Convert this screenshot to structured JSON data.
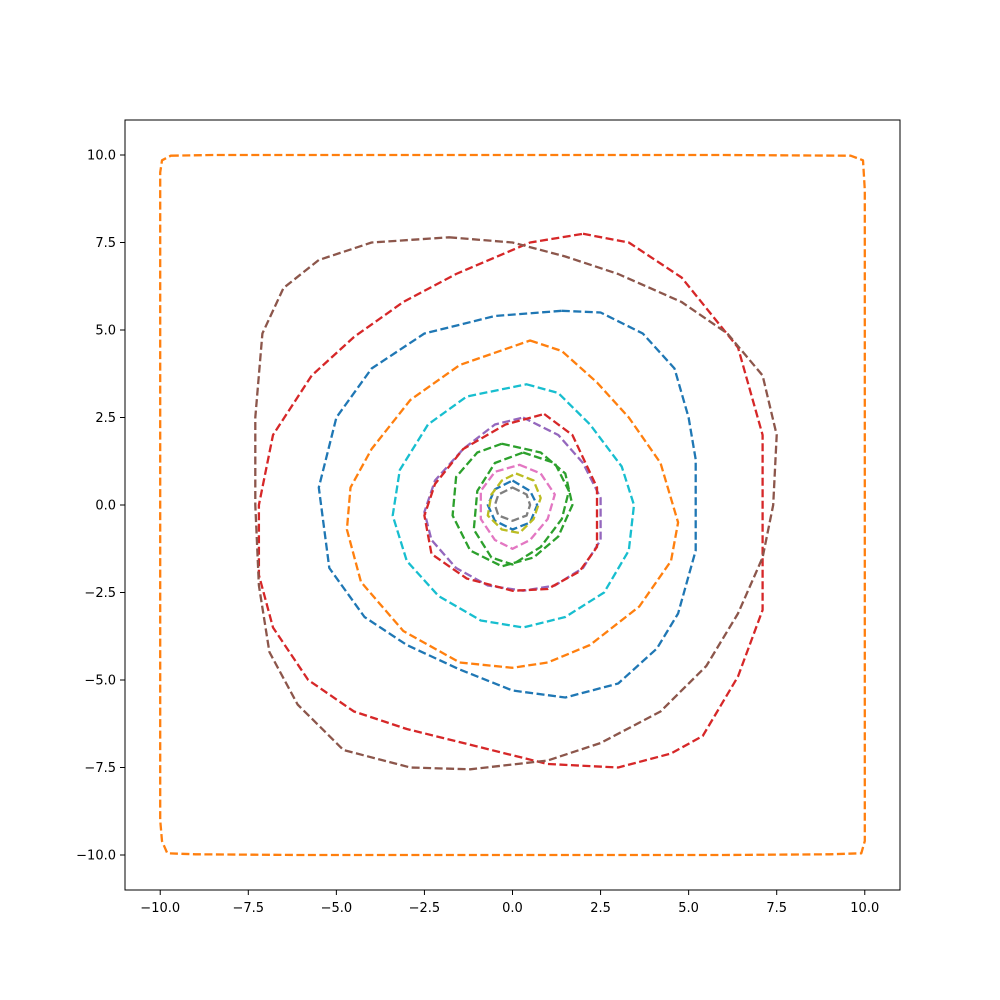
{
  "chart_data": {
    "type": "line",
    "title": "",
    "xlabel": "",
    "ylabel": "",
    "xlim": [
      -11,
      11
    ],
    "ylim": [
      -11,
      11
    ],
    "grid": false,
    "line_style": "dashed",
    "xticks": [
      -10.0,
      -7.5,
      -5.0,
      -2.5,
      0.0,
      2.5,
      5.0,
      7.5,
      10.0
    ],
    "xtick_labels": [
      "−10.0",
      "−7.5",
      "−5.0",
      "−2.5",
      "0.0",
      "2.5",
      "5.0",
      "7.5",
      "10.0"
    ],
    "yticks": [
      10.0,
      7.5,
      5.0,
      2.5,
      0.0,
      -2.5,
      -5.0,
      -7.5,
      -10.0
    ],
    "ytick_labels": [
      "10.0",
      "7.5",
      "5.0",
      "2.5",
      "0.0",
      "−2.5",
      "−5.0",
      "−7.5",
      "−10.0"
    ],
    "series": [
      {
        "color": "#7f7f7f",
        "points": [
          [
            0,
            0.5
          ],
          [
            0.4,
            0.3
          ],
          [
            0.5,
            0
          ],
          [
            0.4,
            -0.3
          ],
          [
            0,
            -0.45
          ],
          [
            -0.4,
            -0.3
          ],
          [
            -0.5,
            0
          ],
          [
            -0.4,
            0.3
          ]
        ]
      },
      {
        "color": "#1f77b4",
        "points": [
          [
            0,
            0.7
          ],
          [
            0.5,
            0.4
          ],
          [
            0.7,
            0
          ],
          [
            0.5,
            -0.5
          ],
          [
            0,
            -0.7
          ],
          [
            -0.5,
            -0.45
          ],
          [
            -0.7,
            0
          ],
          [
            -0.5,
            0.45
          ]
        ]
      },
      {
        "color": "#bcbd22",
        "points": [
          [
            0.1,
            0.9
          ],
          [
            0.6,
            0.7
          ],
          [
            0.8,
            0.2
          ],
          [
            0.6,
            -0.4
          ],
          [
            0.2,
            -0.8
          ],
          [
            -0.3,
            -0.7
          ],
          [
            -0.7,
            -0.3
          ],
          [
            -0.6,
            0.3
          ],
          [
            -0.3,
            0.7
          ]
        ]
      },
      {
        "color": "#e377c2",
        "points": [
          [
            0.2,
            1.15
          ],
          [
            0.8,
            0.9
          ],
          [
            1.2,
            0.3
          ],
          [
            1.0,
            -0.4
          ],
          [
            0.5,
            -1.0
          ],
          [
            0,
            -1.25
          ],
          [
            -0.5,
            -1.0
          ],
          [
            -0.9,
            -0.4
          ],
          [
            -0.9,
            0.4
          ],
          [
            -0.5,
            0.95
          ]
        ]
      },
      {
        "color": "#2ca02c",
        "points": [
          [
            0.3,
            1.5
          ],
          [
            1.2,
            1.2
          ],
          [
            1.6,
            0.4
          ],
          [
            1.4,
            -0.4
          ],
          [
            0.8,
            -1.2
          ],
          [
            0,
            -1.7
          ],
          [
            -0.6,
            -1.5
          ],
          [
            -1.1,
            -0.7
          ],
          [
            -1.0,
            0.4
          ],
          [
            -0.5,
            1.2
          ]
        ]
      },
      {
        "color": "#2ca02c",
        "points": [
          [
            -0.3,
            1.75
          ],
          [
            0.8,
            1.5
          ],
          [
            1.5,
            0.9
          ],
          [
            1.7,
            0
          ],
          [
            1.3,
            -0.9
          ],
          [
            0.6,
            -1.5
          ],
          [
            -0.3,
            -1.75
          ],
          [
            -1.2,
            -1.3
          ],
          [
            -1.7,
            -0.3
          ],
          [
            -1.6,
            0.8
          ],
          [
            -1.0,
            1.5
          ]
        ]
      },
      {
        "color": "#9467bd",
        "points": [
          [
            0.3,
            2.5
          ],
          [
            1.3,
            2.0
          ],
          [
            2.0,
            1.2
          ],
          [
            2.5,
            0.2
          ],
          [
            2.5,
            -1.0
          ],
          [
            2.0,
            -1.8
          ],
          [
            1.2,
            -2.3
          ],
          [
            0.3,
            -2.45
          ],
          [
            -0.7,
            -2.3
          ],
          [
            -1.6,
            -1.8
          ],
          [
            -2.3,
            -1.0
          ],
          [
            -2.5,
            -0.2
          ],
          [
            -2.2,
            0.7
          ],
          [
            -1.4,
            1.6
          ],
          [
            -0.5,
            2.3
          ]
        ]
      },
      {
        "color": "#d62728",
        "points": [
          [
            0.9,
            2.6
          ],
          [
            1.7,
            2.0
          ],
          [
            2.4,
            0.5
          ],
          [
            2.4,
            -1.2
          ],
          [
            1.9,
            -1.9
          ],
          [
            1.0,
            -2.4
          ],
          [
            0,
            -2.45
          ],
          [
            -1.3,
            -2.1
          ],
          [
            -2.3,
            -1.4
          ],
          [
            -2.5,
            -0.3
          ],
          [
            -2.2,
            0.6
          ],
          [
            -1.4,
            1.6
          ],
          [
            -0.2,
            2.3
          ]
        ]
      },
      {
        "color": "#17becf",
        "points": [
          [
            0.4,
            3.45
          ],
          [
            1.3,
            3.2
          ],
          [
            2.2,
            2.3
          ],
          [
            3.1,
            1.1
          ],
          [
            3.45,
            0
          ],
          [
            3.3,
            -1.3
          ],
          [
            2.6,
            -2.5
          ],
          [
            1.5,
            -3.2
          ],
          [
            0.3,
            -3.5
          ],
          [
            -0.9,
            -3.3
          ],
          [
            -2.1,
            -2.6
          ],
          [
            -3.0,
            -1.6
          ],
          [
            -3.4,
            -0.3
          ],
          [
            -3.2,
            1.0
          ],
          [
            -2.4,
            2.3
          ],
          [
            -1.3,
            3.1
          ]
        ]
      },
      {
        "color": "#ff7f0e",
        "points": [
          [
            0.5,
            4.7
          ],
          [
            1.4,
            4.4
          ],
          [
            2.4,
            3.5
          ],
          [
            3.3,
            2.5
          ],
          [
            4.2,
            1.2
          ],
          [
            4.7,
            -0.5
          ],
          [
            4.5,
            -1.6
          ],
          [
            3.6,
            -2.9
          ],
          [
            2.2,
            -4.0
          ],
          [
            1.0,
            -4.5
          ],
          [
            0,
            -4.65
          ],
          [
            -1.5,
            -4.5
          ],
          [
            -3.1,
            -3.6
          ],
          [
            -4.3,
            -2.2
          ],
          [
            -4.7,
            -0.7
          ],
          [
            -4.6,
            0.5
          ],
          [
            -4.0,
            1.6
          ],
          [
            -2.9,
            3.0
          ],
          [
            -1.5,
            4.0
          ]
        ]
      },
      {
        "color": "#1f77b4",
        "points": [
          [
            1.4,
            5.55
          ],
          [
            2.5,
            5.5
          ],
          [
            3.7,
            4.9
          ],
          [
            4.6,
            3.9
          ],
          [
            5.0,
            2.5
          ],
          [
            5.2,
            1.3
          ],
          [
            5.2,
            -1.3
          ],
          [
            4.7,
            -3.1
          ],
          [
            4.1,
            -4.1
          ],
          [
            3.0,
            -5.1
          ],
          [
            1.5,
            -5.5
          ],
          [
            0,
            -5.3
          ],
          [
            -1.5,
            -4.7
          ],
          [
            -3.0,
            -4.0
          ],
          [
            -4.2,
            -3.2
          ],
          [
            -5.2,
            -1.8
          ],
          [
            -5.5,
            0.5
          ],
          [
            -5.0,
            2.5
          ],
          [
            -4.0,
            3.9
          ],
          [
            -2.5,
            4.9
          ],
          [
            -0.5,
            5.4
          ]
        ]
      },
      {
        "color": "#d62728",
        "points": [
          [
            2.0,
            7.75
          ],
          [
            3.3,
            7.5
          ],
          [
            4.8,
            6.5
          ],
          [
            6.4,
            4.5
          ],
          [
            7.1,
            2.0
          ],
          [
            7.1,
            -1.0
          ],
          [
            7.1,
            -3.0
          ],
          [
            6.4,
            -4.9
          ],
          [
            5.4,
            -6.6
          ],
          [
            4.5,
            -7.1
          ],
          [
            3.0,
            -7.5
          ],
          [
            1.0,
            -7.4
          ],
          [
            -1.0,
            -6.9
          ],
          [
            -3.0,
            -6.4
          ],
          [
            -4.5,
            -5.9
          ],
          [
            -5.8,
            -5.0
          ],
          [
            -6.8,
            -3.5
          ],
          [
            -7.2,
            -2.0
          ],
          [
            -7.2,
            0
          ],
          [
            -6.8,
            2.0
          ],
          [
            -5.7,
            3.7
          ],
          [
            -4.5,
            4.8
          ],
          [
            -3.1,
            5.8
          ],
          [
            -1.6,
            6.6
          ],
          [
            0.5,
            7.5
          ]
        ]
      },
      {
        "color": "#8c564b",
        "points": [
          [
            -1.8,
            7.65
          ],
          [
            0,
            7.5
          ],
          [
            1.5,
            7.1
          ],
          [
            3.0,
            6.6
          ],
          [
            4.8,
            5.8
          ],
          [
            6.1,
            4.9
          ],
          [
            7.1,
            3.7
          ],
          [
            7.5,
            2.0
          ],
          [
            7.4,
            0
          ],
          [
            7.1,
            -1.5
          ],
          [
            6.4,
            -3.1
          ],
          [
            5.5,
            -4.6
          ],
          [
            4.2,
            -5.9
          ],
          [
            2.5,
            -6.8
          ],
          [
            1.0,
            -7.3
          ],
          [
            -1.2,
            -7.55
          ],
          [
            -2.9,
            -7.5
          ],
          [
            -4.8,
            -7.0
          ],
          [
            -6.1,
            -5.7
          ],
          [
            -6.9,
            -4.2
          ],
          [
            -7.2,
            -2.3
          ],
          [
            -7.3,
            0
          ],
          [
            -7.3,
            2.5
          ],
          [
            -7.1,
            4.9
          ],
          [
            -6.5,
            6.2
          ],
          [
            -5.5,
            7.0
          ],
          [
            -4.0,
            7.5
          ]
        ]
      },
      {
        "color": "#ff7f0e",
        "points": [
          [
            -9.7,
            9.98
          ],
          [
            -8.5,
            10.0
          ],
          [
            -6,
            10.0
          ],
          [
            -3,
            10.0
          ],
          [
            0,
            10.0
          ],
          [
            3,
            10.0
          ],
          [
            6,
            10.0
          ],
          [
            9.6,
            9.98
          ],
          [
            9.95,
            9.85
          ],
          [
            10.0,
            9.0
          ],
          [
            10.0,
            5.0
          ],
          [
            10.0,
            0
          ],
          [
            10.0,
            -5.0
          ],
          [
            10.0,
            -9.6
          ],
          [
            9.9,
            -9.95
          ],
          [
            9.0,
            -9.98
          ],
          [
            6,
            -10.0
          ],
          [
            3,
            -10.0
          ],
          [
            0,
            -10.0
          ],
          [
            -3,
            -10.0
          ],
          [
            -6,
            -10.0
          ],
          [
            -9.0,
            -9.98
          ],
          [
            -9.8,
            -9.95
          ],
          [
            -9.95,
            -9.6
          ],
          [
            -10.0,
            -9.0
          ],
          [
            -10.0,
            -5.0
          ],
          [
            -10.0,
            0
          ],
          [
            -10.0,
            5.0
          ],
          [
            -10.0,
            9.5
          ],
          [
            -9.95,
            9.85
          ]
        ]
      }
    ]
  }
}
